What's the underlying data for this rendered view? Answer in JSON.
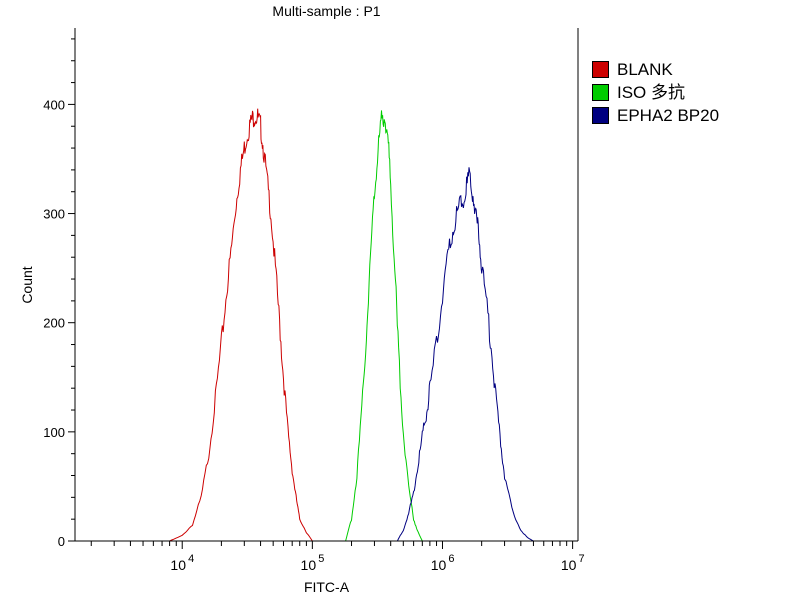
{
  "chart_data": {
    "type": "line",
    "title": "Multi-sample : P1",
    "xlabel": "FITC-A",
    "ylabel": "Count",
    "xscale": "log",
    "xlim": [
      1500,
      11000000
    ],
    "ylim": [
      0,
      470
    ],
    "x_ticks": [
      {
        "base": "10",
        "exp": "4",
        "value": 10000
      },
      {
        "base": "10",
        "exp": "5",
        "value": 100000
      },
      {
        "base": "10",
        "exp": "6",
        "value": 1000000
      },
      {
        "base": "10",
        "exp": "7",
        "value": 10000000
      }
    ],
    "y_ticks": [
      0,
      100,
      200,
      300,
      400
    ],
    "legend_position": "right",
    "grid": false,
    "series": [
      {
        "name": "BLANK",
        "color": "#cc0000",
        "x": [
          8000,
          10000,
          12000,
          14000,
          16000,
          18000,
          20000,
          22000,
          24000,
          26000,
          28000,
          30000,
          32000,
          34000,
          36000,
          38000,
          40000,
          42000,
          45000,
          48000,
          52000,
          56000,
          60000,
          65000,
          70000,
          75000,
          80000,
          90000,
          100000
        ],
        "y": [
          0,
          5,
          15,
          40,
          80,
          130,
          180,
          230,
          270,
          310,
          340,
          360,
          375,
          385,
          390,
          388,
          380,
          360,
          330,
          300,
          250,
          200,
          150,
          100,
          65,
          40,
          20,
          8,
          0
        ]
      },
      {
        "name": "ISO 多抗",
        "color": "#00cc00",
        "x": [
          180000,
          200000,
          220000,
          240000,
          260000,
          280000,
          300000,
          320000,
          340000,
          360000,
          380000,
          400000,
          430000,
          460000,
          500000,
          550000,
          600000,
          650000,
          700000
        ],
        "y": [
          0,
          20,
          60,
          120,
          190,
          260,
          320,
          360,
          385,
          390,
          370,
          330,
          250,
          170,
          100,
          50,
          20,
          8,
          0
        ]
      },
      {
        "name": "EPHA2 BP20",
        "color": "#000080",
        "x": [
          450000,
          500000,
          550000,
          600000,
          650000,
          700000,
          750000,
          800000,
          900000,
          1000000,
          1100000,
          1200000,
          1300000,
          1400000,
          1500000,
          1600000,
          1700000,
          1800000,
          1900000,
          2000000,
          2200000,
          2400000,
          2600000,
          2800000,
          3000000,
          3500000,
          4000000,
          4500000,
          5000000
        ],
        "y": [
          0,
          10,
          25,
          45,
          70,
          95,
          115,
          140,
          180,
          225,
          260,
          285,
          300,
          310,
          320,
          335,
          320,
          300,
          280,
          255,
          215,
          170,
          125,
          90,
          60,
          25,
          10,
          3,
          0
        ]
      }
    ]
  }
}
